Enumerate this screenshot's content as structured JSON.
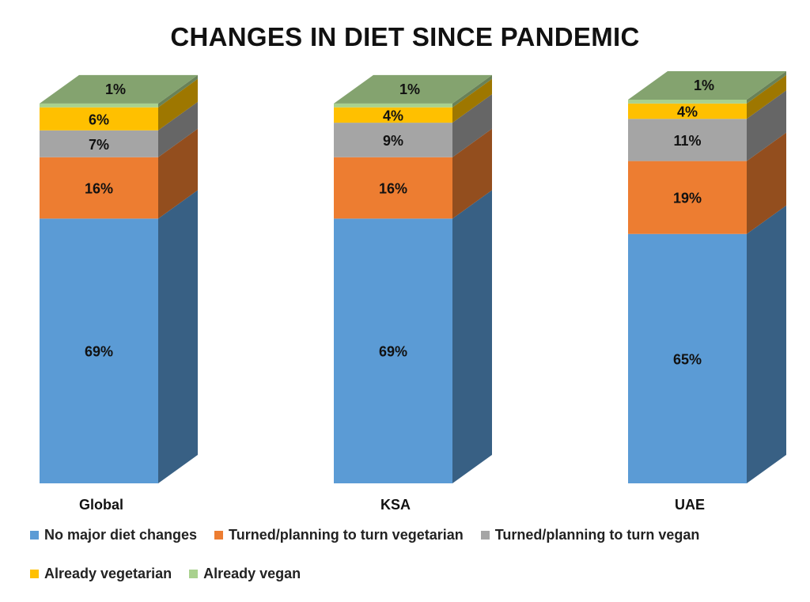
{
  "chart_data": {
    "type": "bar",
    "stacked": true,
    "title": "CHANGES IN DIET SINCE PANDEMIC",
    "categories": [
      "Global",
      "KSA",
      "UAE"
    ],
    "series": [
      {
        "name": "No major diet changes",
        "values": [
          69,
          69,
          65
        ],
        "labels": [
          "69%",
          "69%",
          "65%"
        ],
        "color": "#5b9bd5"
      },
      {
        "name": "Turned/planning to turn vegetarian",
        "values": [
          16,
          16,
          19
        ],
        "labels": [
          "16%",
          "16%",
          "19%"
        ],
        "color": "#ed7d31"
      },
      {
        "name": "Turned/planning to turn vegan",
        "values": [
          7,
          9,
          11
        ],
        "labels": [
          "7%",
          "9%",
          "11%"
        ],
        "color": "#a5a5a5"
      },
      {
        "name": "Already vegetarian",
        "values": [
          6,
          4,
          4
        ],
        "labels": [
          "6%",
          "4%",
          "4%"
        ],
        "color": "#ffc000"
      },
      {
        "name": "Already vegan",
        "values": [
          1,
          1,
          1
        ],
        "labels": [
          "1%",
          "1%",
          "1%"
        ],
        "color": "#a9d18e"
      }
    ],
    "ylim": [
      0,
      100
    ],
    "xlabel": "",
    "ylabel": "",
    "legend": "bottom"
  }
}
